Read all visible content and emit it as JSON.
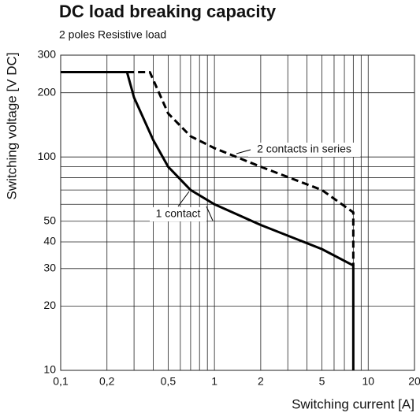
{
  "chart_data": {
    "type": "line",
    "title": "DC load breaking capacity",
    "subtitle": "2 poles Resistive load",
    "xlabel": "Switching current [A]",
    "ylabel": "Switching voltage [V DC]",
    "xscale": "log",
    "yscale": "log",
    "grid": true,
    "xlim": [
      0.1,
      20
    ],
    "ylim": [
      10,
      300
    ],
    "xticks": [
      {
        "value": 0.1,
        "label": "0,1"
      },
      {
        "value": 0.2,
        "label": "0,2"
      },
      {
        "value": 0.5,
        "label": "0,5"
      },
      1,
      2,
      5,
      10,
      20
    ],
    "xminor_ticks": [
      0.3,
      0.4,
      0.6,
      0.7,
      0.8,
      0.9,
      3,
      4,
      6,
      7,
      8,
      9
    ],
    "yticks": [
      10,
      20,
      30,
      40,
      50,
      100,
      200,
      300
    ],
    "yminor_ticks": [
      60,
      70,
      80,
      90
    ],
    "series": [
      {
        "name": "1 contact",
        "color": "#000000",
        "dash": false,
        "x": [
          0.1,
          0.27,
          0.3,
          0.4,
          0.5,
          0.7,
          1,
          2,
          5,
          8,
          8
        ],
        "values": [
          250,
          250,
          190,
          120,
          90,
          70,
          60,
          48,
          37,
          31,
          10
        ]
      },
      {
        "name": "2 contacts in series",
        "color": "#000000",
        "dash": true,
        "x": [
          0.27,
          0.38,
          0.5,
          0.7,
          1,
          2,
          5,
          8,
          8
        ],
        "values": [
          250,
          250,
          160,
          125,
          110,
          90,
          70,
          55,
          31
        ]
      }
    ]
  }
}
